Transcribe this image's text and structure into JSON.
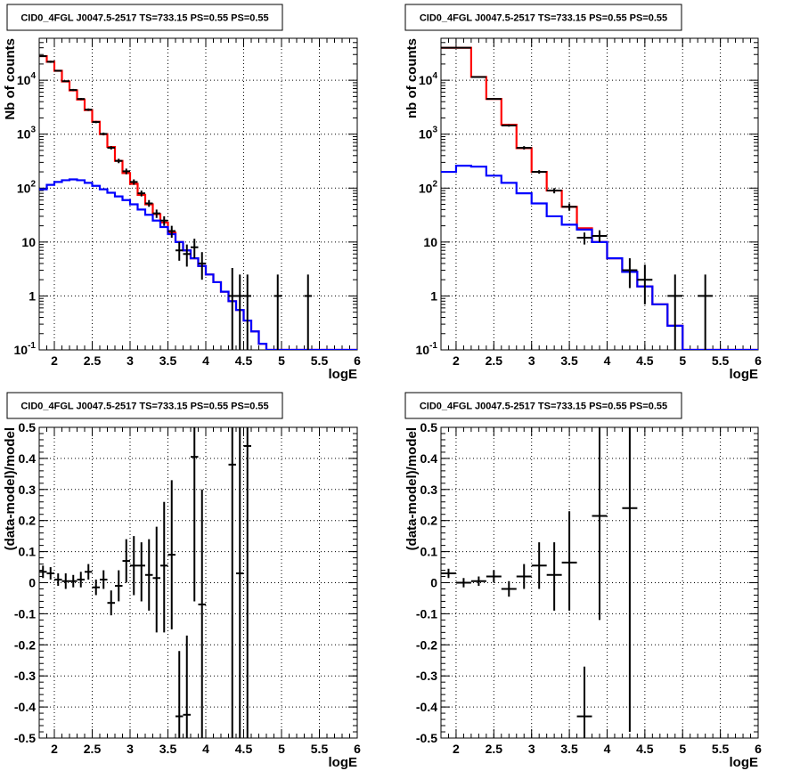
{
  "chart_data": [
    {
      "type": "line",
      "title": "CID0_4FGL J0047.5-2517 TS=733.15 PS=0.55 PS=0.55",
      "xlabel": "logE",
      "ylabel": "Nb of counts",
      "yscale": "log",
      "xlim": [
        1.8,
        6.0
      ],
      "ylim": [
        0.1,
        60000
      ],
      "x_ticks": [
        2,
        2.5,
        3,
        3.5,
        4,
        4.5,
        5,
        5.5,
        6
      ],
      "x_tick_labels": [
        "2",
        "2.5",
        "3",
        "3.5",
        "4",
        "4.5",
        "5",
        "5.5",
        "6"
      ],
      "y_ticks": [
        0.1,
        1,
        10,
        100,
        1000,
        10000
      ],
      "y_tick_labels": [
        "10^-1",
        "1",
        "10",
        "10^2",
        "10^3",
        "10^4"
      ],
      "grid": true,
      "bin_edges": [
        1.8,
        1.9,
        2.0,
        2.1,
        2.2,
        2.3,
        2.4,
        2.5,
        2.6,
        2.7,
        2.8,
        2.9,
        3.0,
        3.1,
        3.2,
        3.3,
        3.4,
        3.5,
        3.6,
        3.7,
        3.8,
        3.9,
        4.0,
        4.1,
        4.2,
        4.3,
        4.4,
        4.5,
        4.6,
        4.7,
        4.8,
        4.9,
        5.0,
        5.1,
        5.2,
        5.3,
        5.4,
        5.5,
        5.6,
        5.7,
        5.8,
        5.9,
        6.0
      ],
      "series": [
        {
          "color": "#ff0000",
          "values": [
            28000,
            22000,
            15000,
            9500,
            6500,
            4400,
            2800,
            1700,
            1000,
            580,
            320,
            190,
            120,
            75,
            50,
            33,
            23,
            15,
            10,
            7,
            5,
            3.6,
            2.5,
            1.8,
            1.2,
            0.8,
            0.55,
            0.35,
            0.22,
            0.13,
            0.1,
            0.1,
            0.1,
            0.1,
            0.1,
            0.1,
            0.1,
            0.1,
            0.1,
            0.1,
            0.1,
            0.1
          ]
        },
        {
          "color": "#0000ff",
          "values": [
            95,
            115,
            130,
            140,
            145,
            140,
            125,
            110,
            95,
            82,
            70,
            60,
            50,
            40,
            32,
            25,
            19,
            14,
            10,
            7,
            5,
            3.6,
            2.5,
            1.8,
            1.2,
            0.8,
            0.55,
            0.35,
            0.22,
            0.13,
            0.1,
            0.1,
            0.1,
            0.1,
            0.1,
            0.1,
            0.1,
            0.1,
            0.1,
            0.1,
            0.1,
            0.1
          ]
        }
      ],
      "points": [
        {
          "x": 1.85,
          "y": 28000,
          "lo": 27000,
          "hi": 29000
        },
        {
          "x": 1.95,
          "y": 22000,
          "lo": 21000,
          "hi": 23000
        },
        {
          "x": 2.05,
          "y": 15000,
          "lo": 14500,
          "hi": 15500
        },
        {
          "x": 2.15,
          "y": 9600,
          "lo": 9300,
          "hi": 9900
        },
        {
          "x": 2.25,
          "y": 6600,
          "lo": 6300,
          "hi": 6900
        },
        {
          "x": 2.35,
          "y": 4500,
          "lo": 4300,
          "hi": 4700
        },
        {
          "x": 2.45,
          "y": 2850,
          "lo": 2700,
          "hi": 3000
        },
        {
          "x": 2.55,
          "y": 1680,
          "lo": 1600,
          "hi": 1760
        },
        {
          "x": 2.65,
          "y": 1010,
          "lo": 950,
          "hi": 1070
        },
        {
          "x": 2.75,
          "y": 560,
          "lo": 520,
          "hi": 600
        },
        {
          "x": 2.85,
          "y": 320,
          "lo": 290,
          "hi": 350
        },
        {
          "x": 2.95,
          "y": 205,
          "lo": 180,
          "hi": 230
        },
        {
          "x": 3.05,
          "y": 130,
          "lo": 115,
          "hi": 145
        },
        {
          "x": 3.15,
          "y": 80,
          "lo": 70,
          "hi": 90
        },
        {
          "x": 3.25,
          "y": 52,
          "lo": 45,
          "hi": 60
        },
        {
          "x": 3.35,
          "y": 34,
          "lo": 28,
          "hi": 40
        },
        {
          "x": 3.45,
          "y": 25,
          "lo": 20,
          "hi": 30
        },
        {
          "x": 3.55,
          "y": 16,
          "lo": 12,
          "hi": 20
        },
        {
          "x": 3.65,
          "y": 7,
          "lo": 4.5,
          "hi": 10
        },
        {
          "x": 3.75,
          "y": 6,
          "lo": 3.5,
          "hi": 9
        },
        {
          "x": 3.85,
          "y": 8,
          "lo": 5,
          "hi": 11.5
        },
        {
          "x": 3.95,
          "y": 4,
          "lo": 2,
          "hi": 6.5
        },
        {
          "x": 4.35,
          "y": 1,
          "lo": 0.1,
          "hi": 3.3
        },
        {
          "x": 4.45,
          "y": 1,
          "lo": 0.1,
          "hi": 2.5
        },
        {
          "x": 4.55,
          "y": 1,
          "lo": 0.1,
          "hi": 2.5
        },
        {
          "x": 4.95,
          "y": 1,
          "lo": 0.1,
          "hi": 2.5
        },
        {
          "x": 5.35,
          "y": 1,
          "lo": 0.1,
          "hi": 2.5
        }
      ]
    },
    {
      "type": "line",
      "title": "CID0_4FGL J0047.5-2517 TS=733.15 PS=0.55 PS=0.55",
      "xlabel": "logE",
      "ylabel": "nb of counts",
      "yscale": "log",
      "xlim": [
        1.8,
        6.0
      ],
      "ylim": [
        0.1,
        60000
      ],
      "x_ticks": [
        2,
        2.5,
        3,
        3.5,
        4,
        4.5,
        5,
        5.5,
        6
      ],
      "x_tick_labels": [
        "2",
        "2.5",
        "3",
        "3.5",
        "4",
        "4.5",
        "5",
        "5.5",
        "6"
      ],
      "y_ticks": [
        0.1,
        1,
        10,
        100,
        1000,
        10000
      ],
      "y_tick_labels": [
        "10^-1",
        "1",
        "10",
        "10^2",
        "10^3",
        "10^4"
      ],
      "grid": true,
      "bin_edges": [
        1.8,
        2.0,
        2.2,
        2.4,
        2.6,
        2.8,
        3.0,
        3.2,
        3.4,
        3.6,
        3.8,
        4.0,
        4.2,
        4.4,
        4.6,
        4.8,
        5.0,
        5.2,
        5.4,
        5.6,
        5.8,
        6.0
      ],
      "series": [
        {
          "color": "#ff0000",
          "values": [
            40000,
            40000,
            11500,
            4500,
            1500,
            550,
            200,
            90,
            45,
            18,
            10,
            5,
            2.8,
            1.5,
            0.7,
            0.28,
            0.1,
            0.1,
            0.1,
            0.1,
            0.1
          ]
        },
        {
          "color": "#0000ff",
          "values": [
            200,
            260,
            250,
            170,
            125,
            80,
            52,
            30,
            21,
            17,
            10,
            5,
            2.8,
            1.5,
            0.7,
            0.28,
            0.1,
            0.1,
            0.1,
            0.1,
            0.1
          ]
        }
      ],
      "points": [
        {
          "x": 1.9,
          "y": 40000,
          "lo": 39500,
          "hi": 40500
        },
        {
          "x": 2.1,
          "y": 40000,
          "lo": 39500,
          "hi": 40500
        },
        {
          "x": 2.3,
          "y": 11500,
          "lo": 11200,
          "hi": 11800
        },
        {
          "x": 2.5,
          "y": 4500,
          "lo": 4350,
          "hi": 4650
        },
        {
          "x": 2.7,
          "y": 1450,
          "lo": 1380,
          "hi": 1520
        },
        {
          "x": 2.9,
          "y": 560,
          "lo": 520,
          "hi": 600
        },
        {
          "x": 3.1,
          "y": 200,
          "lo": 185,
          "hi": 215
        },
        {
          "x": 3.3,
          "y": 90,
          "lo": 80,
          "hi": 100
        },
        {
          "x": 3.5,
          "y": 45,
          "lo": 38,
          "hi": 52
        },
        {
          "x": 3.7,
          "y": 12,
          "lo": 9,
          "hi": 15
        },
        {
          "x": 3.9,
          "y": 13,
          "lo": 10,
          "hi": 16.5
        },
        {
          "x": 4.3,
          "y": 3,
          "lo": 1.4,
          "hi": 5
        },
        {
          "x": 4.5,
          "y": 2,
          "lo": 0.7,
          "hi": 3.8
        },
        {
          "x": 4.9,
          "y": 1,
          "lo": 0.1,
          "hi": 2.5
        },
        {
          "x": 5.3,
          "y": 1,
          "lo": 0.1,
          "hi": 2.5
        }
      ]
    },
    {
      "type": "scatter",
      "title": "CID0_4FGL J0047.5-2517 TS=733.15 PS=0.55 PS=0.55",
      "xlabel": "logE",
      "ylabel": "(data-model)/model",
      "xlim": [
        1.8,
        6.0
      ],
      "ylim": [
        -0.5,
        0.5
      ],
      "x_ticks": [
        2,
        2.5,
        3,
        3.5,
        4,
        4.5,
        5,
        5.5,
        6
      ],
      "x_tick_labels": [
        "2",
        "2.5",
        "3",
        "3.5",
        "4",
        "4.5",
        "5",
        "5.5",
        "6"
      ],
      "y_ticks": [
        -0.5,
        -0.4,
        -0.3,
        -0.2,
        -0.1,
        0,
        0.1,
        0.2,
        0.3,
        0.4,
        0.5
      ],
      "y_tick_labels": [
        "-0.5",
        "-0.4",
        "-0.3",
        "-0.2",
        "-0.1",
        "0",
        "0.1",
        "0.2",
        "0.3",
        "0.4",
        "0.5"
      ],
      "grid": true,
      "x_half_width": 0.05,
      "points": [
        {
          "x": 1.85,
          "y": 0.035,
          "lo": 0.015,
          "hi": 0.055
        },
        {
          "x": 1.95,
          "y": 0.03,
          "lo": 0.01,
          "hi": 0.05
        },
        {
          "x": 2.05,
          "y": 0.01,
          "lo": -0.01,
          "hi": 0.03
        },
        {
          "x": 2.15,
          "y": 0.005,
          "lo": -0.02,
          "hi": 0.03
        },
        {
          "x": 2.25,
          "y": 0.005,
          "lo": -0.015,
          "hi": 0.025
        },
        {
          "x": 2.35,
          "y": 0.01,
          "lo": -0.015,
          "hi": 0.035
        },
        {
          "x": 2.45,
          "y": 0.035,
          "lo": 0.01,
          "hi": 0.06
        },
        {
          "x": 2.55,
          "y": -0.015,
          "lo": -0.04,
          "hi": 0.01
        },
        {
          "x": 2.65,
          "y": 0.01,
          "lo": -0.02,
          "hi": 0.04
        },
        {
          "x": 2.75,
          "y": -0.065,
          "lo": -0.105,
          "hi": -0.025
        },
        {
          "x": 2.85,
          "y": -0.01,
          "lo": -0.06,
          "hi": 0.04
        },
        {
          "x": 2.95,
          "y": 0.07,
          "lo": 0.0,
          "hi": 0.14
        },
        {
          "x": 3.05,
          "y": 0.055,
          "lo": -0.04,
          "hi": 0.15
        },
        {
          "x": 3.15,
          "y": 0.055,
          "lo": -0.06,
          "hi": 0.13
        },
        {
          "x": 3.25,
          "y": 0.025,
          "lo": -0.09,
          "hi": 0.14
        },
        {
          "x": 3.35,
          "y": 0.015,
          "lo": -0.16,
          "hi": 0.18
        },
        {
          "x": 3.45,
          "y": 0.055,
          "lo": -0.16,
          "hi": 0.26
        },
        {
          "x": 3.55,
          "y": 0.09,
          "lo": -0.15,
          "hi": 0.33
        },
        {
          "x": 3.65,
          "y": -0.43,
          "lo": -0.5,
          "hi": -0.22
        },
        {
          "x": 3.75,
          "y": -0.425,
          "lo": -0.5,
          "hi": -0.17
        },
        {
          "x": 3.85,
          "y": 0.405,
          "lo": -0.06,
          "hi": 0.5
        },
        {
          "x": 3.95,
          "y": -0.07,
          "lo": -0.5,
          "hi": 0.3
        },
        {
          "x": 4.35,
          "y": 0.38,
          "lo": -0.5,
          "hi": 0.5
        },
        {
          "x": 4.45,
          "y": 0.03,
          "lo": -0.5,
          "hi": 0.5
        },
        {
          "x": 4.55,
          "y": 0.44,
          "lo": -0.5,
          "hi": 0.5
        }
      ]
    },
    {
      "type": "scatter",
      "title": "CID0_4FGL J0047.5-2517 TS=733.15 PS=0.55 PS=0.55",
      "xlabel": "logE",
      "ylabel": "(data-model)/model",
      "xlim": [
        1.8,
        6.0
      ],
      "ylim": [
        -0.5,
        0.5
      ],
      "x_ticks": [
        2,
        2.5,
        3,
        3.5,
        4,
        4.5,
        5,
        5.5,
        6
      ],
      "x_tick_labels": [
        "2",
        "2.5",
        "3",
        "3.5",
        "4",
        "4.5",
        "5",
        "5.5",
        "6"
      ],
      "y_ticks": [
        -0.5,
        -0.4,
        -0.3,
        -0.2,
        -0.1,
        0,
        0.1,
        0.2,
        0.3,
        0.4,
        0.5
      ],
      "y_tick_labels": [
        "-0.5",
        "-0.4",
        "-0.3",
        "-0.2",
        "-0.1",
        "0",
        "0.1",
        "0.2",
        "0.3",
        "0.4",
        "0.5"
      ],
      "grid": true,
      "x_half_width": 0.1,
      "points": [
        {
          "x": 1.9,
          "y": 0.03,
          "lo": 0.015,
          "hi": 0.045
        },
        {
          "x": 2.1,
          "y": 0.0,
          "lo": -0.015,
          "hi": 0.015
        },
        {
          "x": 2.3,
          "y": 0.005,
          "lo": -0.01,
          "hi": 0.02
        },
        {
          "x": 2.5,
          "y": 0.02,
          "lo": 0.0,
          "hi": 0.04
        },
        {
          "x": 2.7,
          "y": -0.02,
          "lo": -0.045,
          "hi": 0.005
        },
        {
          "x": 2.9,
          "y": 0.02,
          "lo": -0.02,
          "hi": 0.06
        },
        {
          "x": 3.1,
          "y": 0.055,
          "lo": -0.02,
          "hi": 0.13
        },
        {
          "x": 3.3,
          "y": 0.025,
          "lo": -0.09,
          "hi": 0.13
        },
        {
          "x": 3.5,
          "y": 0.065,
          "lo": -0.09,
          "hi": 0.23
        },
        {
          "x": 3.7,
          "y": -0.43,
          "lo": -0.5,
          "hi": -0.27
        },
        {
          "x": 3.9,
          "y": 0.215,
          "lo": -0.12,
          "hi": 0.5
        },
        {
          "x": 4.3,
          "y": 0.24,
          "lo": -0.48,
          "hi": 0.5
        }
      ]
    }
  ]
}
